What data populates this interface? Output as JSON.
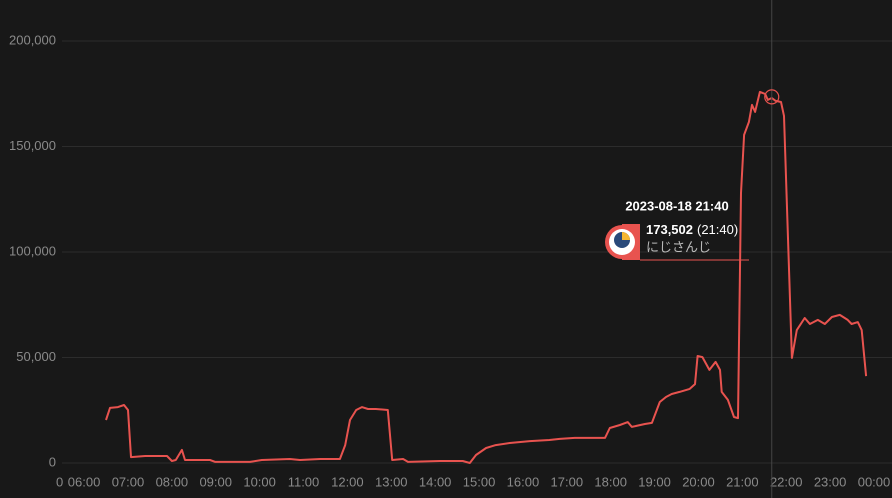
{
  "chart_data": {
    "type": "line",
    "x": [
      6.5,
      6.59,
      6.77,
      6.91,
      7.0,
      7.07,
      7.39,
      7.89,
      8.0,
      8.09,
      8.23,
      8.3,
      8.87,
      8.99,
      9.78,
      10.05,
      10.69,
      10.92,
      11.38,
      11.83,
      11.95,
      12.06,
      12.2,
      12.33,
      12.47,
      12.65,
      12.92,
      13.02,
      13.27,
      13.38,
      14.11,
      14.63,
      14.79,
      14.93,
      15.16,
      15.38,
      15.7,
      16.16,
      16.6,
      16.84,
      17.18,
      17.53,
      17.87,
      17.98,
      18.21,
      18.39,
      18.48,
      18.78,
      18.94,
      19.12,
      19.26,
      19.39,
      19.57,
      19.8,
      19.92,
      19.98,
      20.09,
      20.25,
      20.39,
      20.49,
      20.53,
      20.67,
      20.81,
      20.9,
      20.97,
      21.04,
      21.15,
      21.22,
      21.29,
      21.4,
      21.52,
      21.58,
      21.67,
      21.76,
      21.88,
      21.95,
      22.13,
      22.24,
      22.42,
      22.54,
      22.72,
      22.88,
      23.04,
      23.22,
      23.4,
      23.49,
      23.63,
      23.72,
      23.82
    ],
    "series": [
      {
        "name": "にじさんじ",
        "color": "#e8534f",
        "values": [
          20400,
          26100,
          26500,
          27500,
          25100,
          2800,
          3300,
          3300,
          950,
          1400,
          6200,
          1400,
          1400,
          500,
          500,
          1400,
          1900,
          1400,
          1900,
          1900,
          8500,
          20400,
          25100,
          26500,
          25600,
          25600,
          25100,
          1400,
          1900,
          500,
          950,
          950,
          0,
          3800,
          7100,
          8500,
          9500,
          10400,
          10900,
          11400,
          11900,
          11900,
          11900,
          16600,
          18000,
          19400,
          17100,
          18500,
          19000,
          28900,
          31300,
          32700,
          33700,
          35100,
          37400,
          50700,
          50200,
          44100,
          47900,
          44100,
          33700,
          29900,
          21800,
          21300,
          128000,
          155500,
          161600,
          169700,
          166400,
          175900,
          174900,
          172100,
          173000,
          171600,
          171100,
          164500,
          49800,
          63000,
          68700,
          65900,
          67800,
          65900,
          69200,
          70200,
          67800,
          65900,
          66800,
          63000,
          41200
        ]
      }
    ],
    "xlim": [
      5.36,
      24
    ],
    "xticks": [
      {
        "value": 5.36,
        "label": "0"
      },
      {
        "value": 6,
        "label": "06:00"
      },
      {
        "value": 7,
        "label": "07:00"
      },
      {
        "value": 8,
        "label": "08:00"
      },
      {
        "value": 9,
        "label": "09:00"
      },
      {
        "value": 10,
        "label": "10:00"
      },
      {
        "value": 11,
        "label": "11:00"
      },
      {
        "value": 12,
        "label": "12:00"
      },
      {
        "value": 13,
        "label": "13:00"
      },
      {
        "value": 14,
        "label": "14:00"
      },
      {
        "value": 15,
        "label": "15:00"
      },
      {
        "value": 16,
        "label": "16:00"
      },
      {
        "value": 17,
        "label": "17:00"
      },
      {
        "value": 18,
        "label": "18:00"
      },
      {
        "value": 19,
        "label": "19:00"
      },
      {
        "value": 20,
        "label": "20:00"
      },
      {
        "value": 21,
        "label": "21:00"
      },
      {
        "value": 22,
        "label": "22:00"
      },
      {
        "value": 23,
        "label": "23:00"
      },
      {
        "value": 24,
        "label": "00:00"
      }
    ],
    "ylim": [
      0,
      200000
    ],
    "yticks": [
      0,
      {
        "value": 50000,
        "label": "50,000"
      },
      {
        "value": 100000,
        "label": "100,000"
      },
      {
        "value": 150000,
        "label": "150,000"
      },
      {
        "value": 200000,
        "label": "200,000"
      }
    ],
    "grid": true,
    "tooltip": {
      "title": "2023-08-18 21:40",
      "x": 21.67,
      "value": 173502,
      "value_label": "173,502",
      "time": "(21:40)",
      "name": "にじさんじ"
    }
  }
}
